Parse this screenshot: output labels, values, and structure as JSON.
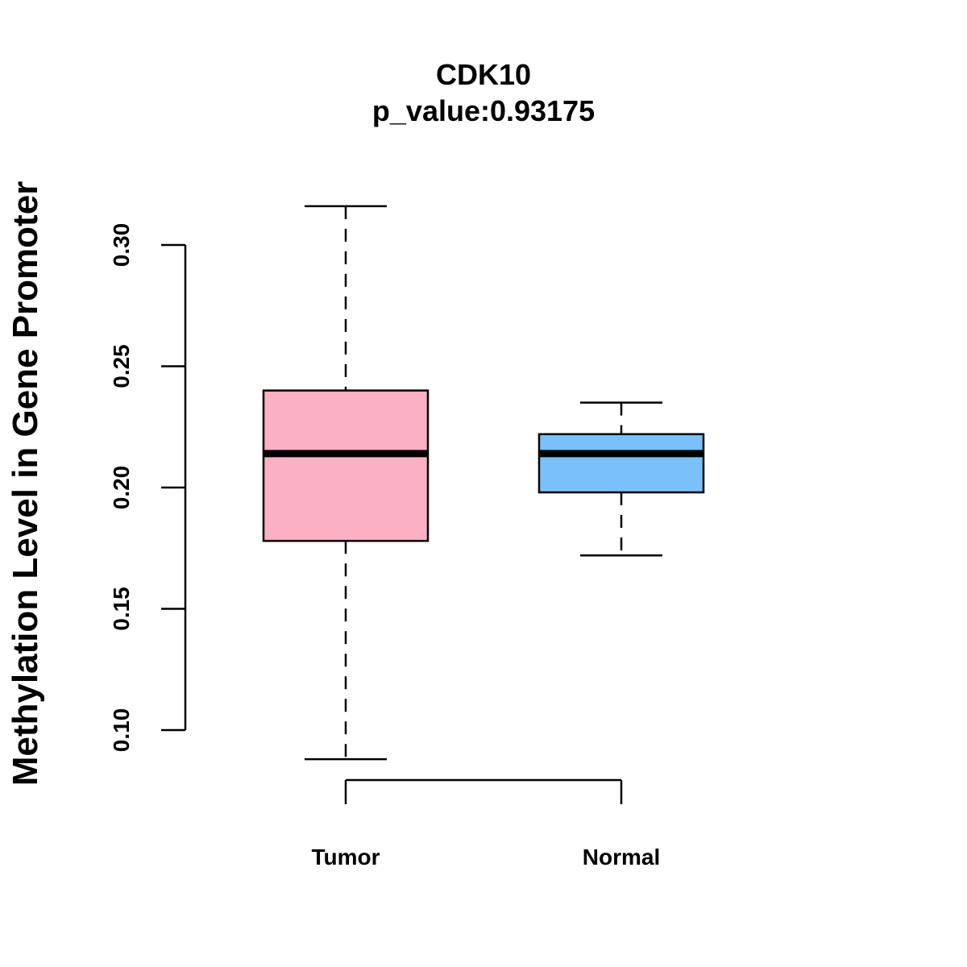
{
  "chart_data": {
    "type": "boxplot",
    "title": "CDK10",
    "subtitle": "p_value:0.93175",
    "ylabel": "Methylation Level in Gene Promoter",
    "xlabel": "",
    "ylim": [
      0.1,
      0.3
    ],
    "yticks": [
      0.1,
      0.15,
      0.2,
      0.25,
      0.3
    ],
    "ytick_labels": [
      "0.10",
      "0.15",
      "0.20",
      "0.25",
      "0.30"
    ],
    "categories": [
      "Tumor",
      "Normal"
    ],
    "series": [
      {
        "name": "Tumor",
        "color": "#FCB0C4",
        "min": 0.088,
        "q1": 0.178,
        "median": 0.214,
        "q3": 0.24,
        "max": 0.316
      },
      {
        "name": "Normal",
        "color": "#79C1F8",
        "min": 0.172,
        "q1": 0.198,
        "median": 0.214,
        "q3": 0.222,
        "max": 0.235
      }
    ]
  }
}
